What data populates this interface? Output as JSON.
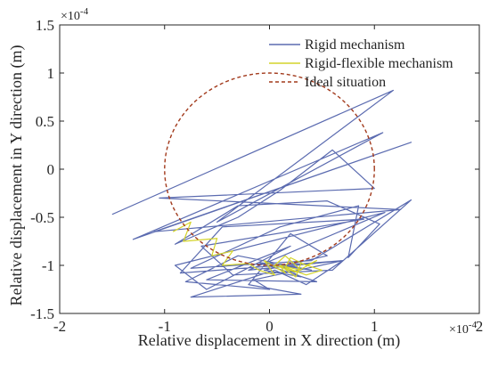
{
  "chart_data": {
    "type": "line",
    "title": "",
    "xlabel": "Relative displacement in X direction (m)",
    "ylabel": "Relative displacement in Y direction (m)",
    "x_multiplier": "×10",
    "x_multiplier_exp": "-4",
    "y_multiplier": "×10",
    "y_multiplier_exp": "-4",
    "xlim": [
      -2,
      2
    ],
    "ylim": [
      -1.5,
      1.5
    ],
    "xticks": [
      "-2",
      "-1",
      "0",
      "1",
      "2"
    ],
    "yticks": [
      "-1.5",
      "-1",
      "-0.5",
      "0",
      "0.5",
      "1",
      "1.5"
    ],
    "grid": false,
    "legend_position": "top-right",
    "series": [
      {
        "name": "Rigid mechanism",
        "color": "#5b6bb0",
        "style": "solid",
        "x": [
          -1.5,
          1.18,
          -0.5,
          1.08,
          -1.3,
          1.35,
          -1.1,
          1.25,
          -1.05,
          1.0,
          0.6,
          0.1,
          -0.3,
          -0.9,
          -0.3,
          0.55,
          1.05,
          0.75,
          0.85,
          0.1,
          -0.75,
          0.4,
          1.35,
          0.6,
          -0.35,
          -0.65,
          0.9,
          -0.45,
          -0.85,
          0.7,
          -0.2,
          1.1,
          -0.9,
          -0.6,
          0.2,
          -0.6,
          0.45,
          -0.1,
          0.1,
          0.3,
          -0.05,
          0.55,
          0.2,
          -0.2,
          0.3,
          -0.75,
          0.05,
          0.35,
          0.7,
          -0.15,
          0.0,
          -0.8,
          -0.3,
          0.4,
          0.1
        ],
        "y": [
          -0.47,
          0.82,
          -0.55,
          0.38,
          -0.73,
          0.28,
          -0.65,
          -0.42,
          -0.3,
          -0.2,
          0.2,
          -0.22,
          -0.5,
          -0.78,
          -0.38,
          -0.33,
          -0.57,
          -0.92,
          -0.38,
          -0.6,
          -1.03,
          -0.95,
          -0.32,
          -1.05,
          -1.1,
          -0.8,
          -0.52,
          -0.6,
          -1.08,
          -0.95,
          -1.05,
          -0.45,
          -1.0,
          -1.25,
          -0.8,
          -1.15,
          -1.17,
          -0.97,
          -1.0,
          -1.12,
          -1.05,
          -0.9,
          -0.67,
          -1.2,
          -1.3,
          -1.33,
          -1.05,
          -1.2,
          -0.95,
          -1.15,
          -1.25,
          -1.17,
          -0.9,
          -1.05,
          -1.0
        ]
      },
      {
        "name": "Rigid-flexible mechanism",
        "color": "#d4d42a",
        "style": "solid",
        "x": [
          -0.92,
          -0.75,
          -0.82,
          -0.5,
          -0.55,
          -0.35,
          -0.45,
          -0.2,
          -0.1,
          0.05,
          -0.05,
          0.15,
          0.1,
          0.25,
          0.3,
          0.5,
          0.35,
          0.15,
          0.2,
          0.35,
          0.45,
          0.25,
          0.05,
          0.15,
          0.3,
          0.1
        ],
        "y": [
          -0.65,
          -0.55,
          -0.75,
          -0.72,
          -0.9,
          -0.85,
          -1.0,
          -0.98,
          -1.05,
          -1.1,
          -0.95,
          -1.08,
          -1.0,
          -1.12,
          -0.98,
          -1.05,
          -1.1,
          -1.02,
          -0.92,
          -1.0,
          -0.95,
          -1.07,
          -1.0,
          -0.9,
          -1.05,
          -1.0
        ]
      },
      {
        "name": "Ideal situation",
        "color": "#a23a1c",
        "style": "dashed",
        "shape": "circle",
        "center": [
          0,
          0
        ],
        "radius": 1
      }
    ]
  }
}
